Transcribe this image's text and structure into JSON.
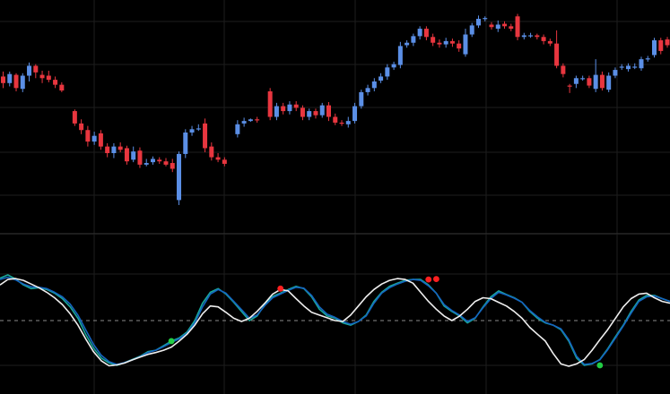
{
  "theme": {
    "background": "#000000",
    "grid": "#1e1e1e",
    "separator": "#3a3a3a",
    "up": "#5b8fe6",
    "down": "#e8363f",
    "zero_line": "#8a8a8a"
  },
  "chart_data": [
    {
      "type": "candlestick",
      "title": "",
      "grid": true,
      "candles": [
        [
          98.8,
          98.0,
          99.4,
          97.4
        ],
        [
          98.0,
          99.1,
          99.4,
          97.6
        ],
        [
          99.0,
          97.4,
          99.2,
          97.0
        ],
        [
          97.3,
          98.9,
          99.2,
          96.9
        ],
        [
          98.9,
          100.1,
          100.5,
          98.2
        ],
        [
          100.1,
          99.3,
          100.3,
          98.6
        ],
        [
          99.0,
          98.6,
          99.5,
          98.0
        ],
        [
          98.9,
          98.4,
          99.5,
          98.1
        ],
        [
          98.4,
          97.8,
          98.8,
          97.4
        ],
        [
          97.8,
          97.1,
          98.1,
          96.9
        ],
        [
          null,
          null,
          null,
          null
        ],
        [
          94.6,
          93.1,
          94.8,
          92.8
        ],
        [
          93.1,
          92.3,
          93.6,
          91.8
        ],
        [
          92.3,
          90.9,
          92.8,
          90.3
        ],
        [
          90.9,
          91.6,
          92.1,
          90.5
        ],
        [
          91.9,
          90.3,
          92.3,
          89.9
        ],
        [
          90.3,
          89.5,
          90.7,
          89.0
        ],
        [
          89.5,
          90.3,
          90.7,
          88.9
        ],
        [
          90.3,
          89.9,
          90.8,
          89.6
        ],
        [
          90.1,
          88.5,
          90.4,
          88.1
        ],
        [
          88.7,
          89.7,
          90.3,
          88.4
        ],
        [
          89.8,
          88.1,
          90.2,
          87.7
        ],
        [
          88.1,
          88.3,
          88.8,
          87.9
        ],
        [
          88.4,
          88.8,
          89.1,
          88.1
        ],
        [
          88.7,
          88.5,
          89.0,
          88.2
        ],
        [
          88.5,
          88.1,
          88.9,
          87.9
        ],
        [
          88.3,
          87.6,
          88.8,
          87.2
        ],
        [
          83.8,
          89.4,
          89.7,
          83.2
        ],
        [
          89.4,
          92.0,
          92.4,
          88.9
        ],
        [
          92.0,
          92.4,
          92.8,
          91.6
        ],
        [
          92.5,
          92.5,
          93.0,
          92.2
        ],
        [
          93.1,
          90.1,
          93.7,
          89.6
        ],
        [
          90.3,
          89.0,
          90.8,
          88.6
        ],
        [
          89.0,
          88.7,
          89.5,
          88.4
        ],
        [
          88.7,
          88.2,
          89.0,
          87.9
        ],
        [
          null,
          null,
          null,
          null
        ],
        [
          91.8,
          93.0,
          93.5,
          91.4
        ],
        [
          93.1,
          93.4,
          93.8,
          92.7
        ],
        [
          93.4,
          93.6,
          93.7,
          93.3
        ],
        [
          93.6,
          93.5,
          93.9,
          93.2
        ],
        [
          null,
          null,
          null,
          null
        ],
        [
          97.0,
          93.9,
          97.4,
          93.5
        ],
        [
          93.9,
          95.2,
          95.6,
          93.5
        ],
        [
          95.2,
          94.6,
          95.6,
          94.2
        ],
        [
          94.6,
          95.4,
          95.8,
          94.2
        ],
        [
          95.4,
          95.0,
          95.8,
          94.6
        ],
        [
          95.0,
          93.9,
          95.3,
          93.5
        ],
        [
          93.9,
          94.6,
          94.9,
          93.5
        ],
        [
          94.6,
          94.1,
          94.9,
          93.7
        ],
        [
          94.1,
          95.3,
          95.6,
          93.8
        ],
        [
          95.3,
          93.9,
          95.7,
          93.4
        ],
        [
          93.9,
          93.2,
          94.3,
          92.9
        ],
        [
          93.2,
          93.1,
          93.5,
          92.8
        ],
        [
          93.0,
          93.4,
          93.9,
          92.6
        ],
        [
          93.4,
          95.2,
          95.6,
          93.1
        ],
        [
          95.2,
          96.9,
          97.2,
          94.9
        ],
        [
          96.9,
          97.4,
          97.8,
          96.5
        ],
        [
          97.4,
          98.2,
          98.6,
          97.0
        ],
        [
          98.3,
          98.8,
          99.2,
          98.0
        ],
        [
          98.8,
          99.9,
          100.3,
          98.4
        ],
        [
          99.9,
          100.3,
          100.6,
          99.6
        ],
        [
          100.2,
          102.5,
          103.0,
          99.8
        ],
        [
          102.6,
          102.9,
          103.2,
          102.3
        ],
        [
          102.9,
          103.7,
          104.0,
          102.5
        ],
        [
          103.7,
          104.6,
          104.9,
          103.3
        ],
        [
          104.6,
          103.6,
          104.9,
          103.2
        ],
        [
          103.6,
          102.9,
          104.0,
          102.5
        ],
        [
          102.9,
          102.7,
          103.3,
          102.3
        ],
        [
          102.7,
          103.1,
          103.5,
          102.3
        ],
        [
          103.1,
          102.8,
          103.4,
          102.4
        ],
        [
          102.8,
          102.2,
          103.2,
          101.8
        ],
        [
          101.5,
          103.9,
          104.6,
          101.2
        ],
        [
          103.9,
          105.0,
          105.3,
          103.6
        ],
        [
          105.0,
          105.8,
          106.2,
          104.7
        ],
        [
          105.8,
          105.9,
          106.1,
          105.5
        ],
        [
          105.1,
          104.8,
          105.4,
          104.5
        ],
        [
          104.6,
          105.1,
          105.6,
          104.2
        ],
        [
          105.2,
          104.9,
          105.5,
          104.6
        ],
        [
          104.9,
          104.6,
          105.2,
          104.3
        ],
        [
          106.1,
          103.6,
          106.4,
          103.2
        ],
        [
          103.6,
          103.8,
          104.1,
          103.3
        ],
        [
          103.8,
          103.8,
          104.1,
          103.5
        ],
        [
          103.8,
          103.6,
          104.0,
          103.3
        ],
        [
          103.6,
          103.1,
          103.9,
          102.7
        ],
        [
          103.1,
          102.8,
          103.4,
          102.5
        ],
        [
          102.8,
          100.1,
          104.4,
          99.8
        ],
        [
          100.1,
          99.1,
          100.4,
          98.7
        ],
        [
          97.7,
          97.6,
          97.9,
          96.8
        ],
        [
          97.9,
          98.6,
          98.9,
          97.4
        ],
        [
          98.6,
          98.6,
          98.9,
          98.3
        ],
        [
          98.6,
          97.7,
          98.9,
          97.4
        ],
        [
          97.3,
          99.0,
          100.9,
          96.9
        ],
        [
          99.0,
          97.4,
          99.4,
          97.1
        ],
        [
          97.2,
          98.9,
          99.3,
          96.9
        ],
        [
          98.9,
          99.6,
          99.9,
          98.6
        ],
        [
          99.9,
          100.0,
          100.3,
          99.6
        ],
        [
          99.7,
          100.1,
          100.4,
          99.4
        ],
        [
          100.0,
          100.0,
          100.4,
          99.7
        ],
        [
          99.8,
          100.9,
          101.2,
          99.5
        ],
        [
          100.9,
          101.0,
          101.3,
          100.6
        ],
        [
          101.4,
          103.2,
          103.5,
          101.1
        ],
        [
          103.2,
          101.9,
          103.5,
          101.5
        ],
        [
          103.3,
          102.6,
          103.6,
          102.3
        ],
        [
          102.9,
          102.8,
          103.3,
          102.4
        ],
        [
          101.6,
          101.2,
          101.9,
          100.8
        ]
      ]
    },
    {
      "type": "line",
      "title": "",
      "grid": true,
      "reference_line": 0,
      "series": [
        {
          "color": "#1aa89a",
          "values": [
            0.93,
            1.0,
            0.91,
            0.78,
            0.7,
            0.72,
            0.68,
            0.6,
            0.48,
            0.3,
            0.05,
            -0.3,
            -0.6,
            -0.82,
            -0.93,
            -0.98,
            -0.92,
            -0.85,
            -0.78,
            -0.68,
            -0.65,
            -0.55,
            -0.45,
            -0.38,
            -0.25,
            0.0,
            0.38,
            0.62,
            0.7,
            0.58,
            0.4,
            0.2,
            0.0,
            0.1,
            0.35,
            0.53,
            0.6,
            0.68,
            0.75,
            0.7,
            0.52,
            0.25,
            0.1,
            0.05,
            -0.05,
            -0.1,
            -0.02,
            0.12,
            0.42,
            0.62,
            0.75,
            0.82,
            0.88,
            0.9,
            0.9,
            0.78,
            0.6,
            0.32,
            0.2,
            0.1,
            -0.05,
            0.05,
            0.3,
            0.52,
            0.65,
            0.57,
            0.5,
            0.4,
            0.2,
            0.05,
            -0.05,
            -0.1,
            -0.2,
            -0.45,
            -0.82,
            -0.98,
            -0.95,
            -0.85,
            -0.62,
            -0.35,
            -0.1,
            0.2,
            0.45,
            0.55,
            0.55,
            0.48,
            0.42
          ]
        },
        {
          "color": "#1565c0",
          "values": [
            0.9,
            0.95,
            0.89,
            0.8,
            0.74,
            0.73,
            0.7,
            0.62,
            0.52,
            0.36,
            0.12,
            -0.2,
            -0.52,
            -0.76,
            -0.9,
            -0.96,
            -0.92,
            -0.86,
            -0.79,
            -0.7,
            -0.65,
            -0.57,
            -0.48,
            -0.4,
            -0.28,
            -0.05,
            0.3,
            0.58,
            0.68,
            0.6,
            0.42,
            0.24,
            0.05,
            0.12,
            0.33,
            0.5,
            0.58,
            0.66,
            0.73,
            0.71,
            0.55,
            0.3,
            0.14,
            0.07,
            -0.02,
            -0.08,
            -0.02,
            0.1,
            0.38,
            0.6,
            0.72,
            0.8,
            0.86,
            0.9,
            0.88,
            0.76,
            0.6,
            0.35,
            0.22,
            0.12,
            -0.02,
            0.06,
            0.28,
            0.48,
            0.62,
            0.56,
            0.49,
            0.4,
            0.22,
            0.08,
            -0.04,
            -0.1,
            -0.18,
            -0.42,
            -0.78,
            -0.96,
            -0.94,
            -0.86,
            -0.64,
            -0.38,
            -0.12,
            0.16,
            0.42,
            0.52,
            0.54,
            0.48,
            0.42
          ]
        },
        {
          "color": "#eeeeee",
          "values": [
            0.78,
            0.9,
            0.92,
            0.88,
            0.8,
            0.72,
            0.62,
            0.5,
            0.35,
            0.15,
            -0.1,
            -0.4,
            -0.68,
            -0.88,
            -0.99,
            -0.97,
            -0.93,
            -0.86,
            -0.8,
            -0.74,
            -0.7,
            -0.65,
            -0.58,
            -0.45,
            -0.3,
            -0.1,
            0.15,
            0.32,
            0.3,
            0.18,
            0.05,
            -0.02,
            0.05,
            0.2,
            0.38,
            0.58,
            0.68,
            0.65,
            0.48,
            0.32,
            0.18,
            0.12,
            0.06,
            0.0,
            -0.02,
            0.12,
            0.32,
            0.52,
            0.68,
            0.8,
            0.88,
            0.92,
            0.9,
            0.82,
            0.62,
            0.42,
            0.25,
            0.1,
            0.0,
            0.1,
            0.25,
            0.42,
            0.5,
            0.48,
            0.4,
            0.32,
            0.2,
            0.05,
            -0.15,
            -0.3,
            -0.45,
            -0.72,
            -0.95,
            -1.0,
            -0.95,
            -0.85,
            -0.65,
            -0.42,
            -0.2,
            0.05,
            0.3,
            0.48,
            0.58,
            0.6,
            0.5,
            0.42,
            0.38
          ]
        }
      ],
      "markers": [
        {
          "index": 36,
          "value": 0.7,
          "color": "#ff2020"
        },
        {
          "index": 55,
          "value": 0.9,
          "color": "#ff2020"
        },
        {
          "index": 56,
          "value": 0.91,
          "color": "#ff2020"
        },
        {
          "index": 22,
          "value": -0.45,
          "color": "#22cc44"
        },
        {
          "index": 77,
          "value": -0.98,
          "color": "#22cc44"
        }
      ]
    }
  ]
}
